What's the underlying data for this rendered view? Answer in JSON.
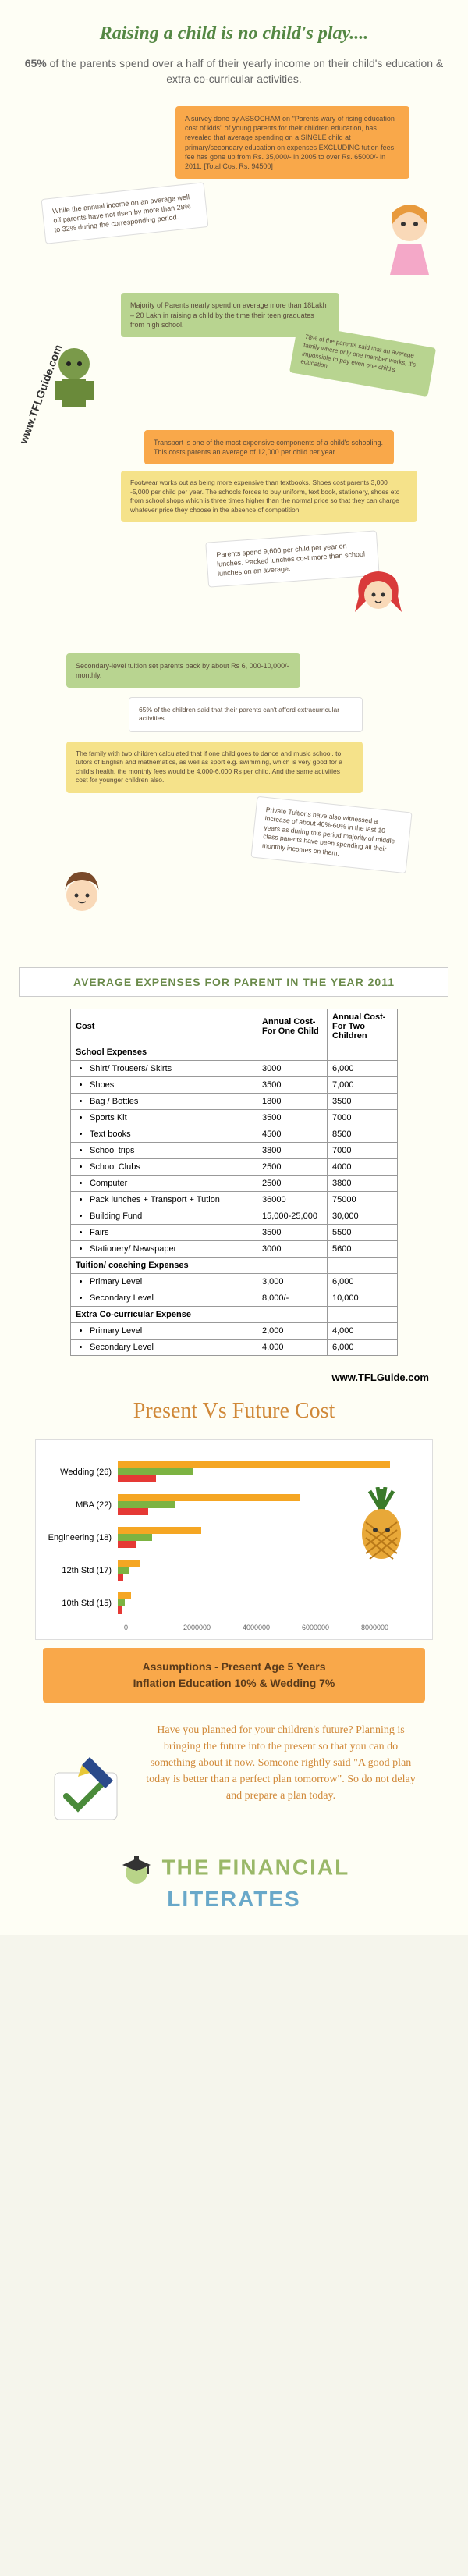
{
  "header": {
    "title": "Raising a child is no child's play....",
    "subtitle_pct": "65%",
    "subtitle_rest": " of the parents spend over a half of their yearly income on their child's education & extra co-curricular activities."
  },
  "urls": {
    "vertical": "www.TFLGuide.com",
    "right": "www.TFLGuide.com"
  },
  "notes": {
    "assocham": "A survey done by ASSOCHAM on \"Parents wary of rising education cost of kids\" of young parents for their children education, has revealed that average spending on a SINGLE child at primary/secondary education on expenses EXCLUDING tution fees fee has gone up from Rs. 35,000/- in 2005 to over Rs. 65000/- in 2011. [Total Cost Rs. 94500]",
    "annual_income": "While the annual income on an average well off parents have not risen by more than 28% to 32% during the corresponding period.",
    "majority": "Majority of Parents nearly spend on average more than 18Lakh – 20 Lakh in raising a child by the time their teen graduates from high school.",
    "seventy_eight": "78% of the parents said that an average family where only one member works, it's impossible to pay even one child's education.",
    "transport": "Transport is one of the most expensive components of a child's schooling. This costs parents an average of 12,000 per child per year.",
    "footwear": "Footwear works out as being more expensive than textbooks. Shoes cost parents 3,000 -5,000 per child per year. The schools forces to buy uniform, text book, stationery, shoes etc from school shops which is three times higher than the normal price so that they can charge whatever price they choose in the absence of competition.",
    "lunches": "Parents spend 9,600 per child per year on lunches. Packed lunches cost more than school lunches on an average.",
    "secondary": "Secondary-level tuition set parents back by about Rs 6, 000-10,000/- monthly.",
    "sixty_five": "65% of the children said that their parents can't afford extracurricular activities.",
    "two_children": "The family with two children calculated that if one child goes to dance and music school, to tutors of English and mathematics, as well as sport e.g. swimming, which is very good for a child's health, the monthly fees would be 4,000-6,000 Rs per child. And the same activities cost for younger children also.",
    "private_tuitions": "Private Tuitions have also witnessed a increase of about 40%-60% in the last 10 years as during this period majority of middle class parents have been spending all their monthly incomes on them."
  },
  "expenses": {
    "section_title": "AVERAGE EXPENSES FOR PARENT IN THE YEAR 2011",
    "headers": [
      "Cost",
      "Annual Cost- For One Child",
      "Annual Cost- For Two Children"
    ],
    "groups": [
      {
        "label": "School Expenses",
        "rows": [
          {
            "item": "Shirt/ Trousers/ Skirts",
            "c1": "3000",
            "c2": "6,000"
          },
          {
            "item": "Shoes",
            "c1": "3500",
            "c2": "7,000"
          },
          {
            "item": "Bag / Bottles",
            "c1": "1800",
            "c2": "3500"
          },
          {
            "item": "Sports Kit",
            "c1": "3500",
            "c2": "7000"
          },
          {
            "item": "Text books",
            "c1": "4500",
            "c2": "8500"
          },
          {
            "item": "School trips",
            "c1": "3800",
            "c2": "7000"
          },
          {
            "item": "School Clubs",
            "c1": "2500",
            "c2": "4000"
          },
          {
            "item": "Computer",
            "c1": "2500",
            "c2": "3800"
          },
          {
            "item": "Pack lunches + Transport + Tution",
            "c1": "36000",
            "c2": "75000"
          },
          {
            "item": "Building Fund",
            "c1": "15,000-25,000",
            "c2": "30,000"
          },
          {
            "item": "Fairs",
            "c1": "3500",
            "c2": "5500"
          },
          {
            "item": "Stationery/ Newspaper",
            "c1": "3000",
            "c2": "5600"
          }
        ]
      },
      {
        "label": "Tuition/ coaching Expenses",
        "rows": [
          {
            "item": "Primary Level",
            "c1": "3,000",
            "c2": "6,000"
          },
          {
            "item": "Secondary Level",
            "c1": "8,000/-",
            "c2": "10,000"
          }
        ]
      },
      {
        "label": "Extra Co-curricular Expense",
        "rows": [
          {
            "item": "Primary Level",
            "c1": "2,000",
            "c2": "4,000"
          },
          {
            "item": "Secondary Level",
            "c1": "4,000",
            "c2": "6,000"
          }
        ]
      }
    ]
  },
  "future": {
    "title": "Present Vs Future Cost",
    "categories": [
      "Wedding (26)",
      "MBA (22)",
      "Engineering (18)",
      "12th Std (17)",
      "10th Std (15)"
    ],
    "series_colors": [
      "#f5a623",
      "#7cb342",
      "#e53935"
    ],
    "max": 8000000,
    "ticks": [
      "0",
      "2000000",
      "4000000",
      "6000000",
      "8000000"
    ],
    "data": {
      "Wedding (26)": [
        7200000,
        2000000,
        1000000
      ],
      "MBA (22)": [
        4800000,
        1500000,
        800000
      ],
      "Engineering (18)": [
        2200000,
        900000,
        500000
      ],
      "12th Std (17)": [
        600000,
        300000,
        150000
      ],
      "10th Std (15)": [
        350000,
        180000,
        100000
      ]
    },
    "assumptions_l1": "Assumptions - Present Age 5 Years",
    "assumptions_l2": "Inflation Education 10% & Wedding 7%"
  },
  "closing": "Have you planned for your children's future? Planning is bringing the future into the present so that you can do something about it now. Someone rightly said \"A good plan today is better than a perfect plan tomorrow\". So do not delay and prepare a plan today.",
  "logo": {
    "line1": "THE FINANCIAL",
    "line2": "LITERATES"
  }
}
